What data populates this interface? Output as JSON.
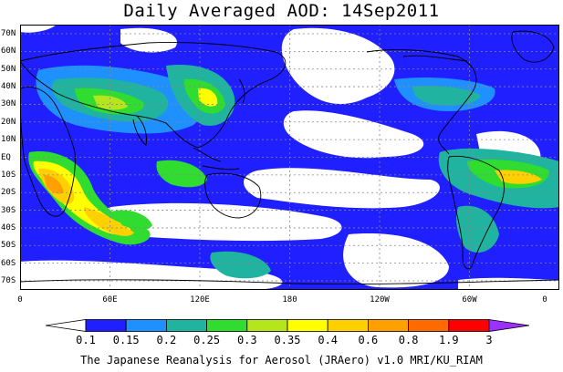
{
  "title": "Daily Averaged AOD: 14Sep2011",
  "footer": "The Japanese Reanalysis for Aerosol (JRAero) v1.0 MRI/KU_RIAM",
  "map": {
    "lat_labels": [
      "70N",
      "60N",
      "50N",
      "40N",
      "30N",
      "20N",
      "10N",
      "EQ",
      "10S",
      "20S",
      "30S",
      "40S",
      "50S",
      "60S",
      "70S"
    ],
    "lon_labels": [
      "0",
      "60E",
      "120E",
      "180",
      "120W",
      "60W",
      "0"
    ],
    "gridline_color": "#888888",
    "coastline_color": "#000000"
  },
  "colorbar": {
    "labels": [
      "0.1",
      "0.15",
      "0.2",
      "0.25",
      "0.3",
      "0.35",
      "0.4",
      "0.6",
      "0.8",
      "1.9",
      "3"
    ],
    "colors": [
      "#ffffff",
      "#1f1fff",
      "#1e90ff",
      "#1fb3a0",
      "#2fdc2f",
      "#b5e61d",
      "#ffff00",
      "#ffd000",
      "#ffa000",
      "#ff6a00",
      "#ff0000",
      "#9b30ff"
    ]
  }
}
